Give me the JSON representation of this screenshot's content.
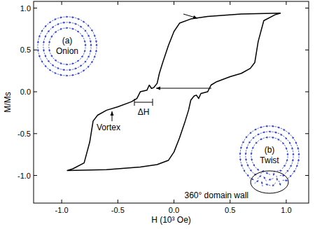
{
  "chart_data": {
    "type": "line",
    "xlabel": "H (10³ Oe)",
    "ylabel": "M/Ms",
    "color": "#000000",
    "x": [
      0.95,
      0.6,
      0.3,
      0.15,
      0.05,
      0,
      -0.05,
      -0.1,
      -0.13,
      -0.15,
      -0.18,
      -0.2,
      -0.22,
      -0.24,
      -0.3,
      -0.33,
      -0.38,
      -0.5,
      -0.6,
      -0.68,
      -0.72,
      -0.75,
      -0.8,
      -0.9,
      -0.95,
      -0.6,
      -0.3,
      -0.15,
      -0.05,
      0,
      0.05,
      0.1,
      0.13,
      0.15,
      0.18,
      0.2,
      0.22,
      0.24,
      0.3,
      0.33,
      0.38,
      0.5,
      0.6,
      0.68,
      0.72,
      0.75,
      0.8,
      0.9,
      0.95
    ],
    "values": [
      0.94,
      0.93,
      0.9,
      0.87,
      0.82,
      0.72,
      0.55,
      0.35,
      0.22,
      0.1,
      0.05,
      0.04,
      0.08,
      0.02,
      0,
      -0.08,
      -0.12,
      -0.18,
      -0.22,
      -0.28,
      -0.35,
      -0.6,
      -0.85,
      -0.92,
      -0.94,
      -0.93,
      -0.9,
      -0.87,
      -0.82,
      -0.72,
      -0.55,
      -0.35,
      -0.22,
      -0.1,
      -0.05,
      -0.04,
      -0.08,
      -0.02,
      0,
      0.08,
      0.12,
      0.18,
      0.22,
      0.28,
      0.35,
      0.6,
      0.85,
      0.92,
      0.94
    ],
    "xlim": [
      -1.25,
      1.2
    ],
    "ylim": [
      -1.33,
      1.08
    ],
    "xticks": [
      {
        "value": -1,
        "label": "-1.0"
      },
      {
        "value": -0.5,
        "label": "-0.5"
      },
      {
        "value": 0,
        "label": "0.0"
      },
      {
        "value": 0.5,
        "label": "0.5"
      },
      {
        "value": 1,
        "label": "1.0"
      }
    ],
    "yticks": [
      {
        "value": -1,
        "label": "-1.0"
      },
      {
        "value": -0.5,
        "label": "-0.5"
      },
      {
        "value": 0,
        "label": "0.0"
      },
      {
        "value": 0.5,
        "label": "0.5"
      },
      {
        "value": 1,
        "label": "1.0"
      }
    ],
    "annotations": [
      "Vortex",
      "ΔH"
    ],
    "insets": [
      {
        "label": "(a)",
        "name": "Onion"
      },
      {
        "label": "(b)",
        "name": "Twist",
        "wall_label": "360° domain wall"
      }
    ]
  }
}
